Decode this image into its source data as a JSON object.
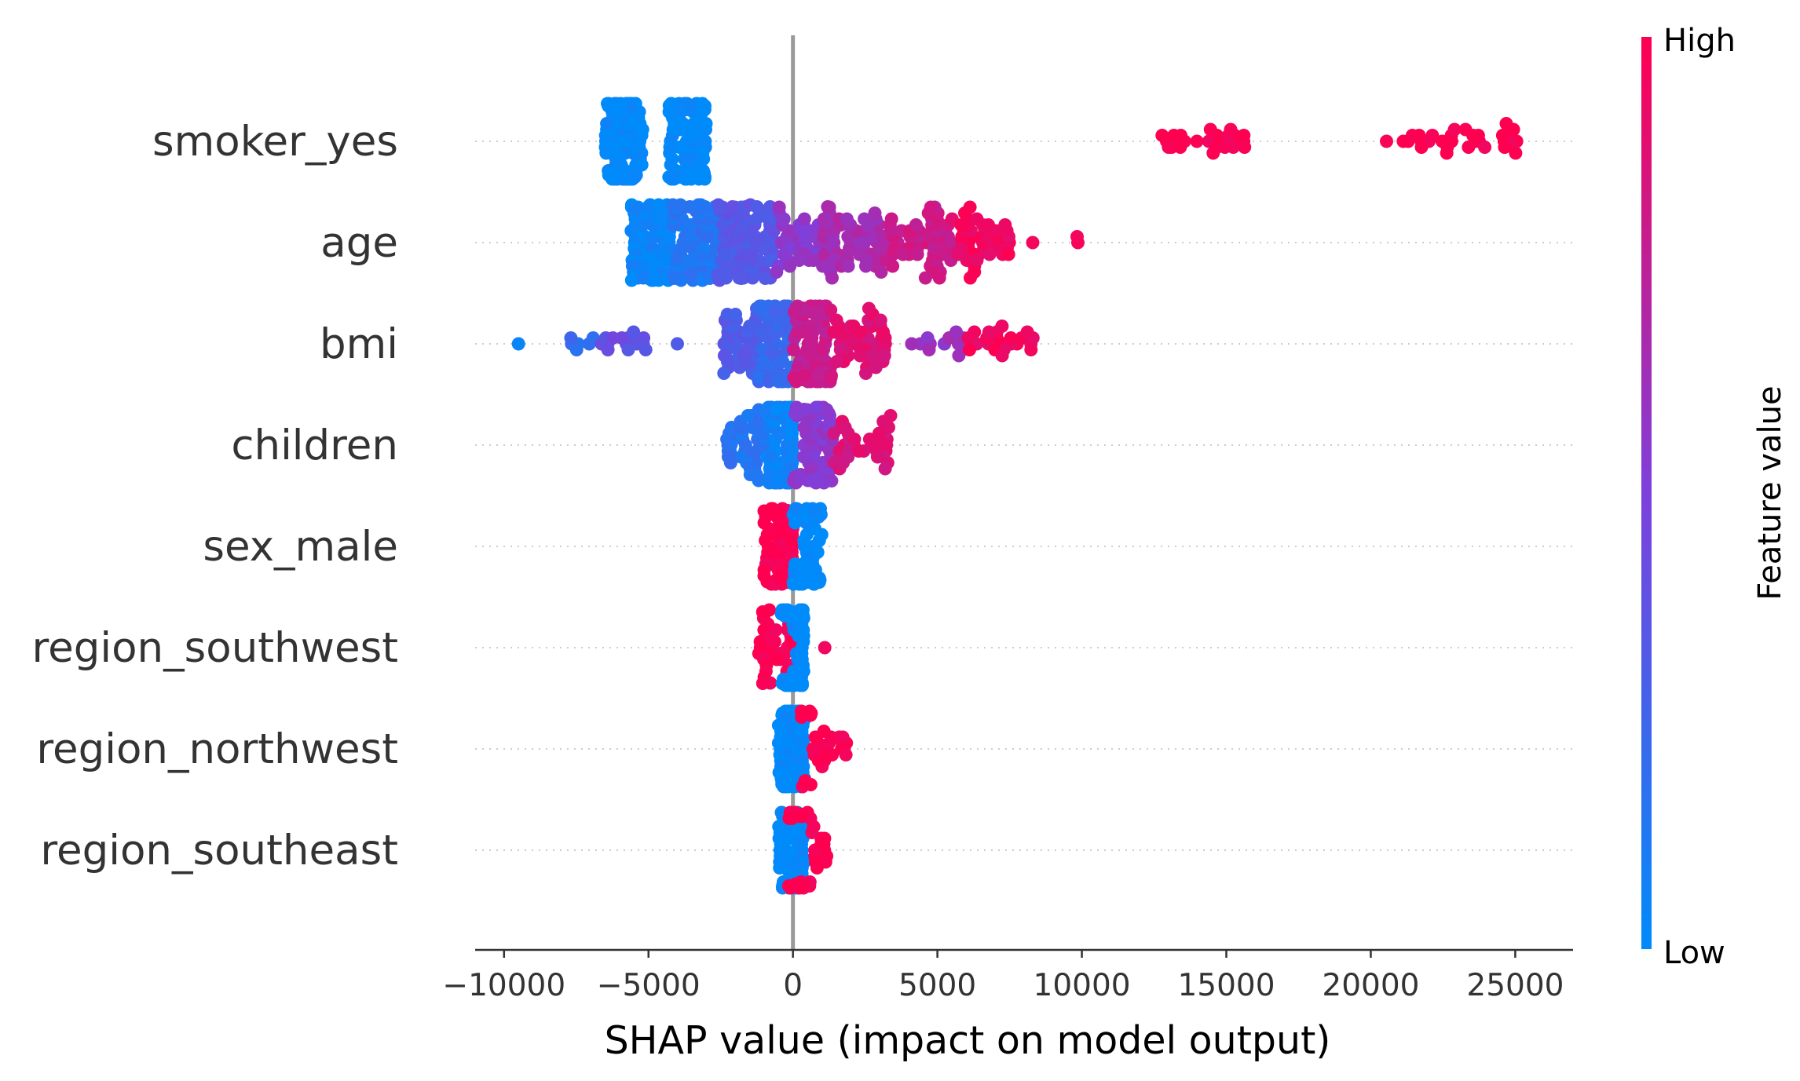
{
  "chart_data": {
    "type": "scatter",
    "subtype": "shap-beeswarm",
    "title": "",
    "xlabel": "SHAP value (impact on model output)",
    "ylabel": "",
    "xlim": [
      -11000,
      27000
    ],
    "xticks": [
      -10000,
      -5000,
      0,
      5000,
      10000,
      15000,
      20000,
      25000
    ],
    "xtick_labels": [
      "−10000",
      "−5000",
      "0",
      "5000",
      "10000",
      "15000",
      "20000",
      "25000"
    ],
    "grid": false,
    "zero_line": true,
    "colorbar": {
      "title": "Feature value",
      "high_label": "High",
      "low_label": "Low",
      "low_color": "#008bfb",
      "high_color": "#ff0051"
    },
    "features": [
      {
        "name": "smoker_yes",
        "groups": [
          {
            "min": -6500,
            "max": -5200,
            "count": 150,
            "value": 0.0
          },
          {
            "min": -4300,
            "max": -3000,
            "count": 110,
            "value": 0.0
          },
          {
            "min": 12400,
            "max": 16000,
            "count": 26,
            "value": 1.0
          },
          {
            "min": 20500,
            "max": 25100,
            "count": 32,
            "value": 1.0
          }
        ]
      },
      {
        "name": "age",
        "groups": [
          {
            "min": -5600,
            "max": -4200,
            "count": 90,
            "value": 0.04
          },
          {
            "min": -4200,
            "max": -2600,
            "count": 80,
            "value": 0.14
          },
          {
            "min": -2600,
            "max": -600,
            "count": 85,
            "value": 0.34
          },
          {
            "min": -600,
            "max": 1000,
            "count": 35,
            "value": 0.56
          },
          {
            "min": 1000,
            "max": 3200,
            "count": 60,
            "value": 0.66
          },
          {
            "min": 3200,
            "max": 5500,
            "count": 55,
            "value": 0.8
          },
          {
            "min": 5500,
            "max": 7500,
            "count": 45,
            "value": 0.95
          },
          {
            "min": 8300,
            "max": 8300,
            "count": 1,
            "value": 1.0
          },
          {
            "min": 9800,
            "max": 10400,
            "count": 2,
            "value": 1.0
          }
        ]
      },
      {
        "name": "bmi",
        "groups": [
          {
            "min": -9500,
            "max": -9500,
            "count": 1,
            "value": 0.0
          },
          {
            "min": -7800,
            "max": -6800,
            "count": 6,
            "value": 0.2
          },
          {
            "min": -6700,
            "max": -5000,
            "count": 14,
            "value": 0.4
          },
          {
            "min": -4000,
            "max": -4000,
            "count": 1,
            "value": 0.3
          },
          {
            "min": -2400,
            "max": -1200,
            "count": 40,
            "value": 0.32
          },
          {
            "min": -1200,
            "max": 0,
            "count": 95,
            "value": 0.22
          },
          {
            "min": 0,
            "max": 1300,
            "count": 110,
            "value": 0.78
          },
          {
            "min": 1300,
            "max": 3200,
            "count": 50,
            "value": 0.88
          },
          {
            "min": 4000,
            "max": 6000,
            "count": 14,
            "value": 0.6
          },
          {
            "min": 6000,
            "max": 8400,
            "count": 22,
            "value": 0.95
          }
        ]
      },
      {
        "name": "children",
        "groups": [
          {
            "min": -2300,
            "max": -900,
            "count": 40,
            "value": 0.15
          },
          {
            "min": -900,
            "max": 0,
            "count": 110,
            "value": 0.05
          },
          {
            "min": 0,
            "max": 1400,
            "count": 70,
            "value": 0.55
          },
          {
            "min": 1400,
            "max": 3400,
            "count": 35,
            "value": 0.85
          }
        ]
      },
      {
        "name": "sex_male",
        "groups": [
          {
            "min": -1000,
            "max": 0,
            "count": 70,
            "value": 1.0
          },
          {
            "min": 0,
            "max": 1000,
            "count": 70,
            "value": 0.0
          }
        ]
      },
      {
        "name": "region_southwest",
        "groups": [
          {
            "min": -1200,
            "max": 0,
            "count": 40,
            "value": 1.0
          },
          {
            "min": -400,
            "max": 400,
            "count": 85,
            "value": 0.0
          },
          {
            "min": 1100,
            "max": 1100,
            "count": 1,
            "value": 1.0
          }
        ]
      },
      {
        "name": "region_northwest",
        "groups": [
          {
            "min": -500,
            "max": 400,
            "count": 95,
            "value": 0.0
          },
          {
            "min": 200,
            "max": 1900,
            "count": 30,
            "value": 1.0
          }
        ]
      },
      {
        "name": "region_southeast",
        "groups": [
          {
            "min": -500,
            "max": 400,
            "count": 85,
            "value": 0.0
          },
          {
            "min": -200,
            "max": 1200,
            "count": 40,
            "value": 1.0
          }
        ]
      }
    ]
  }
}
